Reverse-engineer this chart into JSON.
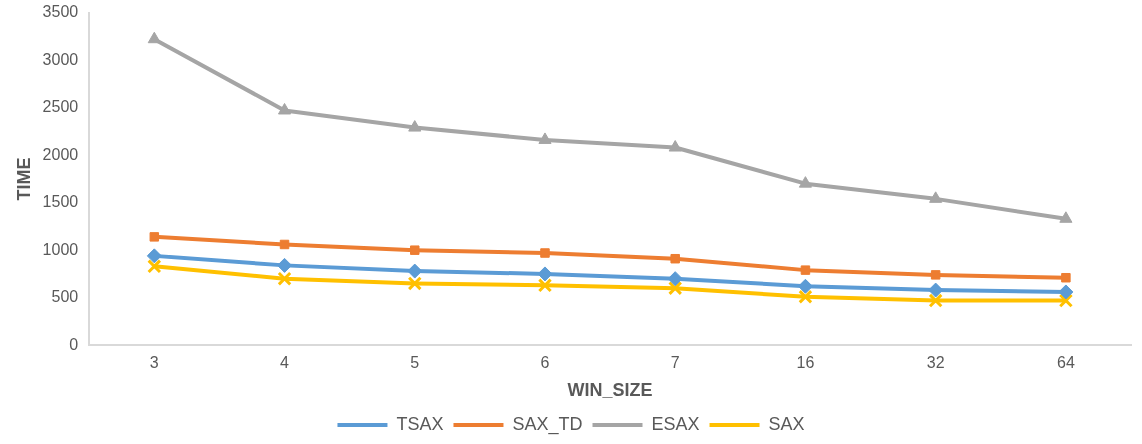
{
  "chart_data": {
    "type": "line",
    "xlabel": "WIN_SIZE",
    "ylabel": "TIME",
    "categories": [
      "3",
      "4",
      "5",
      "6",
      "7",
      "16",
      "32",
      "64"
    ],
    "series": [
      {
        "name": "TSAX",
        "color": "#5b9bd5",
        "marker": "diamond",
        "values": [
          940,
          840,
          780,
          750,
          700,
          620,
          580,
          560
        ]
      },
      {
        "name": "SAX_TD",
        "color": "#ed7d31",
        "marker": "square",
        "values": [
          1140,
          1060,
          1000,
          970,
          910,
          790,
          740,
          710
        ]
      },
      {
        "name": "ESAX",
        "color": "#a5a5a5",
        "marker": "triangle",
        "values": [
          3220,
          2470,
          2290,
          2160,
          2080,
          1700,
          1540,
          1330
        ]
      },
      {
        "name": "SAX",
        "color": "#ffc000",
        "marker": "cross",
        "values": [
          830,
          700,
          650,
          630,
          600,
          510,
          470,
          470
        ]
      }
    ],
    "ylim": [
      0,
      3500
    ],
    "yticks": [
      0,
      500,
      1000,
      1500,
      2000,
      2500,
      3000,
      3500
    ],
    "grid": false,
    "legend": "bottom"
  }
}
